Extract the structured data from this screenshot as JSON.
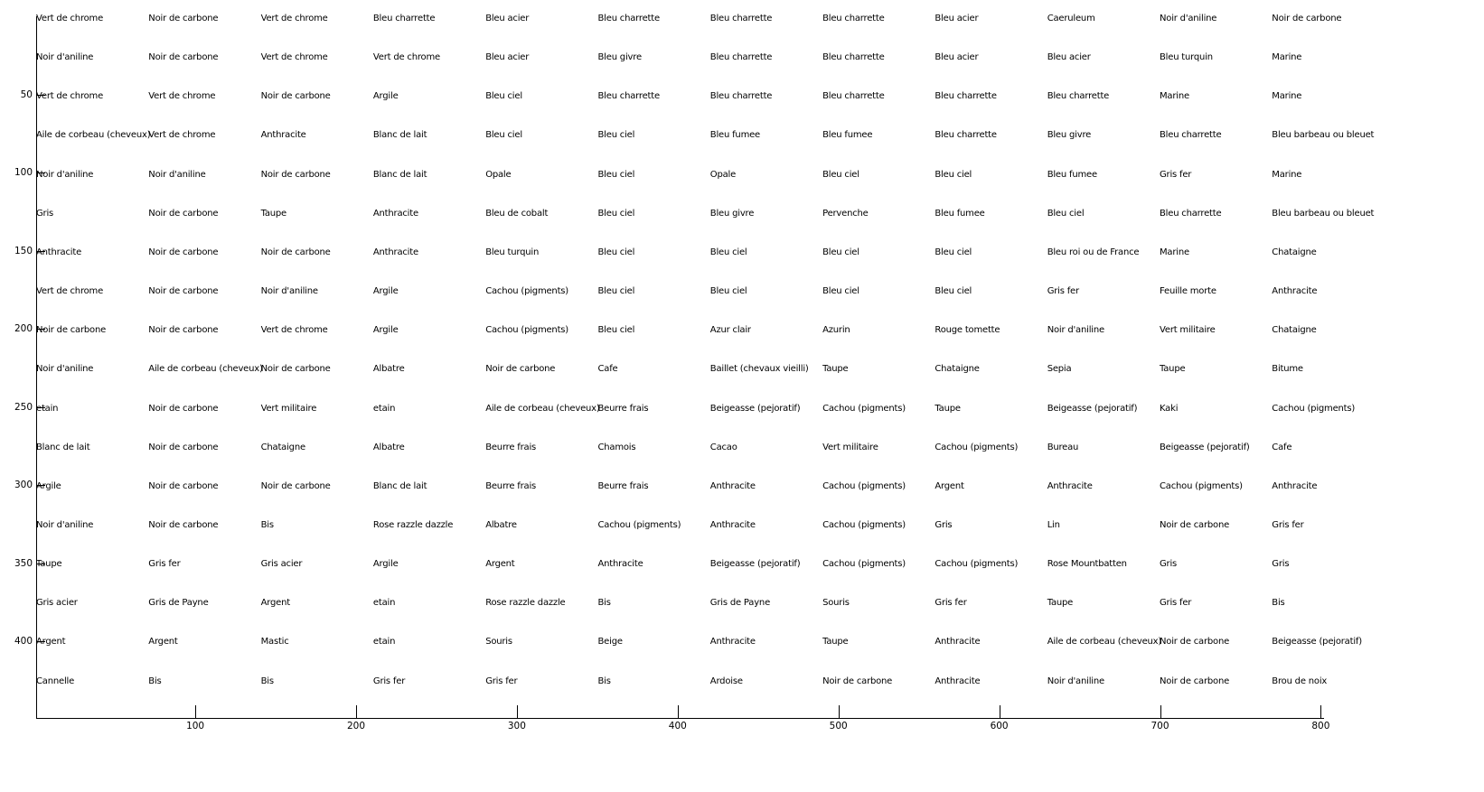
{
  "chart_data": {
    "type": "table",
    "x_ticks": [
      100,
      200,
      300,
      400,
      500,
      600,
      700,
      800
    ],
    "y_ticks": [
      50,
      100,
      150,
      200,
      250,
      300,
      350,
      400
    ],
    "y_direction": "reversed",
    "grid": false,
    "axis_color": "#000000",
    "text_color": "#000000",
    "rows": [
      [
        "Vert de chrome",
        "Noir de carbone",
        "Vert de chrome",
        "Bleu charrette",
        "Bleu acier",
        "Bleu charrette",
        "Bleu charrette",
        "Bleu charrette",
        "Bleu acier",
        "Caeruleum",
        "Noir d'aniline",
        "Noir de carbone"
      ],
      [
        "Noir d'aniline",
        "Noir de carbone",
        "Vert de chrome",
        "Vert de chrome",
        "Bleu acier",
        "Bleu givre",
        "Bleu charrette",
        "Bleu charrette",
        "Bleu acier",
        "Bleu acier",
        "Bleu turquin",
        "Marine"
      ],
      [
        "Vert de chrome",
        "Vert de chrome",
        "Noir de carbone",
        "Argile",
        "Bleu ciel",
        "Bleu charrette",
        "Bleu charrette",
        "Bleu charrette",
        "Bleu charrette",
        "Bleu charrette",
        "Marine",
        "Marine"
      ],
      [
        "Aile de corbeau (cheveux)",
        "Vert de chrome",
        "Anthracite",
        "Blanc de lait",
        "Bleu ciel",
        "Bleu ciel",
        "Bleu fumee",
        "Bleu fumee",
        "Bleu charrette",
        "Bleu givre",
        "Bleu charrette",
        "Bleu barbeau ou bleuet"
      ],
      [
        "Noir d'aniline",
        "Noir d'aniline",
        "Noir de carbone",
        "Blanc de lait",
        "Opale",
        "Bleu ciel",
        "Opale",
        "Bleu ciel",
        "Bleu ciel",
        "Bleu fumee",
        "Gris fer",
        "Marine"
      ],
      [
        "Gris",
        "Noir de carbone",
        "Taupe",
        "Anthracite",
        "Bleu de cobalt",
        "Bleu ciel",
        "Bleu givre",
        "Pervenche",
        "Bleu fumee",
        "Bleu ciel",
        "Bleu charrette",
        "Bleu barbeau ou bleuet"
      ],
      [
        "Anthracite",
        "Noir de carbone",
        "Noir de carbone",
        "Anthracite",
        "Bleu turquin",
        "Bleu ciel",
        "Bleu ciel",
        "Bleu ciel",
        "Bleu ciel",
        "Bleu roi ou de France",
        "Marine",
        "Chataigne"
      ],
      [
        "Vert de chrome",
        "Noir de carbone",
        "Noir d'aniline",
        "Argile",
        "Cachou (pigments)",
        "Bleu ciel",
        "Bleu ciel",
        "Bleu ciel",
        "Bleu ciel",
        "Gris fer",
        "Feuille morte",
        "Anthracite"
      ],
      [
        "Noir de carbone",
        "Noir de carbone",
        "Vert de chrome",
        "Argile",
        "Cachou (pigments)",
        "Bleu ciel",
        "Azur clair",
        "Azurin",
        "Rouge tomette",
        "Noir d'aniline",
        "Vert militaire",
        "Chataigne"
      ],
      [
        "Noir d'aniline",
        "Aile de corbeau (cheveux)",
        "Noir de carbone",
        "Albatre",
        "Noir de carbone",
        "Cafe",
        "Baillet (chevaux vieilli)",
        "Taupe",
        "Chataigne",
        "Sepia",
        "Taupe",
        "Bitume"
      ],
      [
        "etain",
        "Noir de carbone",
        "Vert militaire",
        "etain",
        "Aile de corbeau (cheveux)",
        "Beurre frais",
        "Beigeasse (pejoratif)",
        "Cachou (pigments)",
        "Taupe",
        "Beigeasse (pejoratif)",
        "Kaki",
        "Cachou (pigments)"
      ],
      [
        "Blanc de lait",
        "Noir de carbone",
        "Chataigne",
        "Albatre",
        "Beurre frais",
        "Chamois",
        "Cacao",
        "Vert militaire",
        "Cachou (pigments)",
        "Bureau",
        "Beigeasse (pejoratif)",
        "Cafe"
      ],
      [
        "Argile",
        "Noir de carbone",
        "Noir de carbone",
        "Blanc de lait",
        "Beurre frais",
        "Beurre frais",
        "Anthracite",
        "Cachou (pigments)",
        "Argent",
        "Anthracite",
        "Cachou (pigments)",
        "Anthracite"
      ],
      [
        "Noir d'aniline",
        "Noir de carbone",
        "Bis",
        "Rose razzle dazzle",
        "Albatre",
        "Cachou (pigments)",
        "Anthracite",
        "Cachou (pigments)",
        "Gris",
        "Lin",
        "Noir de carbone",
        "Gris fer"
      ],
      [
        "Taupe",
        "Gris fer",
        "Gris acier",
        "Argile",
        "Argent",
        "Anthracite",
        "Beigeasse (pejoratif)",
        "Cachou (pigments)",
        "Cachou (pigments)",
        "Rose Mountbatten",
        "Gris",
        "Gris"
      ],
      [
        "Gris acier",
        "Gris de Payne",
        "Argent",
        "etain",
        "Rose razzle dazzle",
        "Bis",
        "Gris de Payne",
        "Souris",
        "Gris fer",
        "Taupe",
        "Gris fer",
        "Bis"
      ],
      [
        "Argent",
        "Argent",
        "Mastic",
        "etain",
        "Souris",
        "Beige",
        "Anthracite",
        "Taupe",
        "Anthracite",
        "Aile de corbeau (cheveux)",
        "Noir de carbone",
        "Beigeasse (pejoratif)"
      ],
      [
        "Cannelle",
        "Bis",
        "Bis",
        "Gris fer",
        "Gris fer",
        "Bis",
        "Ardoise",
        "Noir de carbone",
        "Anthracite",
        "Noir d'aniline",
        "Noir de carbone",
        "Brou de noix"
      ]
    ]
  }
}
